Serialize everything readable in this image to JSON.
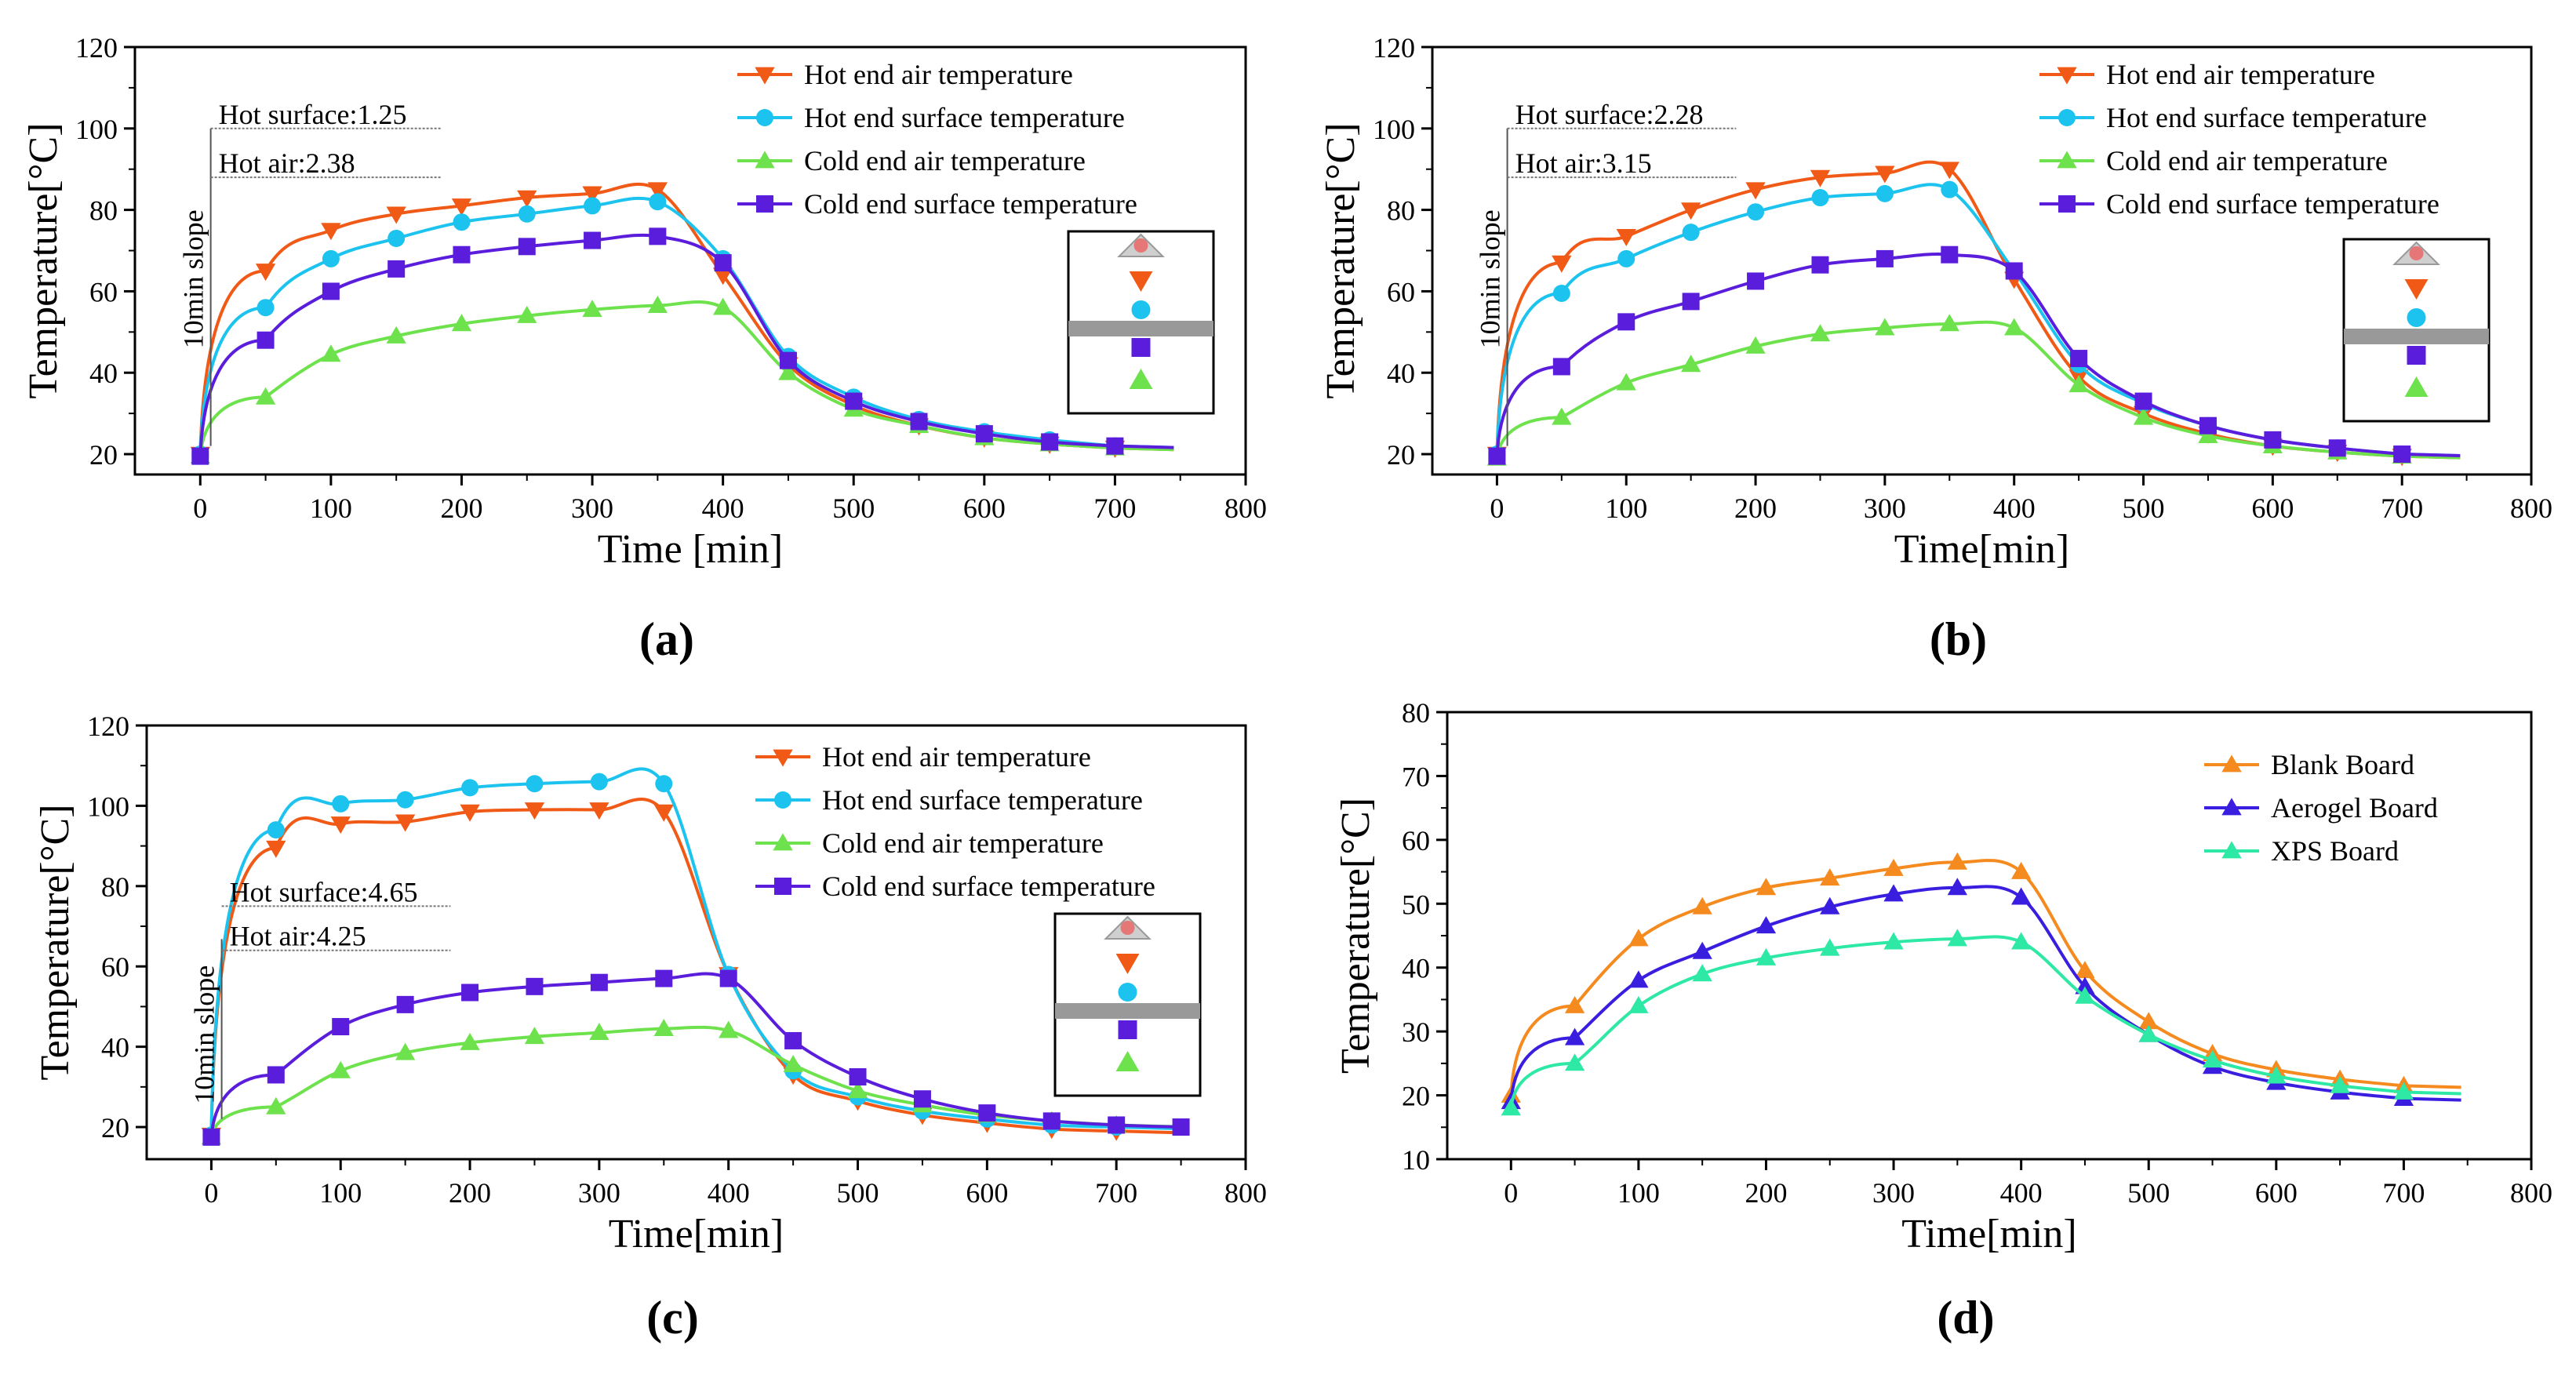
{
  "chart_data": [
    {
      "type": "line",
      "panel_label": "(a)",
      "xlabel": "Time [min]",
      "ylabel": "Temperature[°C]",
      "xlim": [
        -50,
        800
      ],
      "ylim": [
        15,
        120
      ],
      "xticks": [
        0,
        100,
        200,
        300,
        400,
        500,
        600,
        700,
        800
      ],
      "yticks": [
        20,
        40,
        60,
        80,
        100,
        120
      ],
      "legend_position": "top-right",
      "annotations": {
        "slope_label": "10min slope",
        "hot_surface": "Hot surface:1.25",
        "hot_air": "Hot air:2.38"
      },
      "series": [
        {
          "name": "Hot end air temperature",
          "color": "#F05A16",
          "marker": "triangle-down",
          "x": [
            0,
            50,
            100,
            150,
            200,
            250,
            300,
            350,
            400,
            450,
            500,
            550,
            600,
            650,
            700
          ],
          "y": [
            20,
            65,
            75,
            79,
            81,
            83,
            84,
            85,
            64,
            42,
            32,
            27,
            24,
            22.5,
            21.5
          ]
        },
        {
          "name": "Hot end surface temperature",
          "color": "#1CC3EE",
          "marker": "circle",
          "x": [
            0,
            50,
            100,
            150,
            200,
            250,
            300,
            350,
            400,
            450,
            500,
            550,
            600,
            650,
            700
          ],
          "y": [
            20,
            56,
            68,
            73,
            77,
            79,
            81,
            82,
            68,
            44,
            34,
            28.5,
            25.5,
            23.5,
            22
          ]
        },
        {
          "name": "Cold end air temperature",
          "color": "#6EE24C",
          "marker": "triangle-up",
          "x": [
            0,
            50,
            100,
            150,
            200,
            250,
            300,
            350,
            400,
            450,
            500,
            550,
            600,
            650,
            700
          ],
          "y": [
            19.5,
            34,
            44.5,
            49,
            52,
            54,
            55.5,
            56.5,
            56,
            40,
            31,
            27,
            24,
            22.5,
            21.5
          ]
        },
        {
          "name": "Cold end surface temperature",
          "color": "#5A1DDC",
          "marker": "square",
          "x": [
            0,
            50,
            100,
            150,
            200,
            250,
            300,
            350,
            400,
            450,
            500,
            550,
            600,
            650,
            700
          ],
          "y": [
            19.5,
            48,
            60,
            65.5,
            69,
            71,
            72.5,
            73.5,
            67,
            43,
            33,
            28,
            25,
            23,
            22
          ]
        }
      ]
    },
    {
      "type": "line",
      "panel_label": "(b)",
      "xlabel": "Time[min]",
      "ylabel": "Temperature[°C]",
      "xlim": [
        -50,
        800
      ],
      "ylim": [
        15,
        120
      ],
      "xticks": [
        0,
        100,
        200,
        300,
        400,
        500,
        600,
        700,
        800
      ],
      "yticks": [
        20,
        40,
        60,
        80,
        100,
        120
      ],
      "legend_position": "top-right",
      "annotations": {
        "slope_label": "10min slope",
        "hot_surface": "Hot surface:2.28",
        "hot_air": "Hot air:3.15"
      },
      "series": [
        {
          "name": "Hot end air temperature",
          "color": "#F05A16",
          "marker": "triangle-down",
          "x": [
            0,
            50,
            100,
            150,
            200,
            250,
            300,
            350,
            400,
            450,
            500,
            550,
            600,
            650,
            700
          ],
          "y": [
            20,
            67,
            73.5,
            80,
            85,
            88,
            89,
            90,
            63,
            39,
            30,
            25,
            22,
            20.5,
            19.5
          ]
        },
        {
          "name": "Hot end surface temperature",
          "color": "#1CC3EE",
          "marker": "circle",
          "x": [
            0,
            50,
            100,
            150,
            200,
            250,
            300,
            350,
            400,
            450,
            500,
            550,
            600,
            650,
            700
          ],
          "y": [
            20,
            59.5,
            68,
            74.5,
            79.5,
            83,
            84,
            85,
            65,
            42,
            32.5,
            27,
            23.5,
            21.5,
            20
          ]
        },
        {
          "name": "Cold end air temperature",
          "color": "#6EE24C",
          "marker": "triangle-up",
          "x": [
            0,
            50,
            100,
            150,
            200,
            250,
            300,
            350,
            400,
            450,
            500,
            550,
            600,
            650,
            700
          ],
          "y": [
            19,
            29,
            37.5,
            42,
            46.5,
            49.5,
            51,
            52,
            51,
            37,
            29,
            24.5,
            22,
            20.5,
            19.5
          ]
        },
        {
          "name": "Cold end surface temperature",
          "color": "#5A1DDC",
          "marker": "square",
          "x": [
            0,
            50,
            100,
            150,
            200,
            250,
            300,
            350,
            400,
            450,
            500,
            550,
            600,
            650,
            700
          ],
          "y": [
            19.5,
            41.5,
            52.5,
            57.5,
            62.5,
            66.5,
            68,
            69,
            65,
            43.5,
            33,
            27,
            23.5,
            21.5,
            20
          ]
        }
      ]
    },
    {
      "type": "line",
      "panel_label": "(c)",
      "xlabel": "Time[min]",
      "ylabel": "Temperature[°C]",
      "xlim": [
        -50,
        800
      ],
      "ylim": [
        12,
        120
      ],
      "xticks": [
        0,
        100,
        200,
        300,
        400,
        500,
        600,
        700,
        800
      ],
      "yticks": [
        20,
        40,
        60,
        80,
        100,
        120
      ],
      "legend_position": "top-right",
      "annotations": {
        "slope_label": "10min slope",
        "hot_surface": "Hot surface:4.65",
        "hot_air": "Hot air:4.25"
      },
      "series": [
        {
          "name": "Hot end air temperature",
          "color": "#F05A16",
          "marker": "triangle-down",
          "x": [
            0,
            50,
            100,
            150,
            200,
            250,
            300,
            350,
            400,
            450,
            500,
            550,
            600,
            650,
            700
          ],
          "y": [
            18,
            89.5,
            95.5,
            96,
            98.5,
            99,
            99,
            98.5,
            58,
            33,
            26.5,
            23,
            21,
            19.5,
            19
          ]
        },
        {
          "name": "Hot end surface temperature",
          "color": "#1CC3EE",
          "marker": "circle",
          "x": [
            0,
            50,
            100,
            150,
            200,
            250,
            300,
            350,
            400,
            450,
            500,
            550,
            600,
            650,
            700
          ],
          "y": [
            18,
            94,
            100.5,
            101.5,
            104.5,
            105.5,
            106,
            105.5,
            58,
            34,
            27.5,
            24,
            22,
            20.5,
            20
          ]
        },
        {
          "name": "Cold end air temperature",
          "color": "#6EE24C",
          "marker": "triangle-up",
          "x": [
            0,
            50,
            100,
            150,
            200,
            250,
            300,
            350,
            400,
            450,
            500,
            550,
            600,
            650,
            700
          ],
          "y": [
            17.5,
            25,
            34,
            38.5,
            41,
            42.5,
            43.5,
            44.5,
            44,
            35.5,
            29,
            25.5,
            23,
            21.5,
            20.5
          ]
        },
        {
          "name": "Cold end surface temperature",
          "color": "#5A1DDC",
          "marker": "square",
          "x": [
            0,
            50,
            100,
            150,
            200,
            250,
            300,
            350,
            400,
            450,
            500,
            550,
            600,
            650,
            700,
            750
          ],
          "y": [
            17.5,
            33,
            45,
            50.5,
            53.5,
            55,
            56,
            57,
            57,
            41.5,
            32.5,
            27,
            23.5,
            21.5,
            20.5,
            20
          ]
        }
      ]
    },
    {
      "type": "line",
      "panel_label": "(d)",
      "xlabel": "Time[min]",
      "ylabel": "Temperature[°C]",
      "xlim": [
        -50,
        800
      ],
      "ylim": [
        10,
        80
      ],
      "xticks": [
        0,
        100,
        200,
        300,
        400,
        500,
        600,
        700,
        800
      ],
      "yticks": [
        10,
        20,
        30,
        40,
        50,
        60,
        70,
        80
      ],
      "legend_position": "top-right",
      "series": [
        {
          "name": "Blank    Board",
          "color": "#F58A1F",
          "marker": "triangle-up",
          "x": [
            0,
            50,
            100,
            150,
            200,
            250,
            300,
            350,
            400,
            450,
            500,
            550,
            600,
            650,
            700
          ],
          "y": [
            20,
            34,
            44.5,
            49.5,
            52.5,
            54,
            55.5,
            56.5,
            55,
            39.5,
            31.5,
            26.5,
            24,
            22.5,
            21.5
          ]
        },
        {
          "name": "Aerogel Board",
          "color": "#3A1EE0",
          "marker": "triangle-up",
          "x": [
            0,
            50,
            100,
            150,
            200,
            250,
            300,
            350,
            400,
            450,
            500,
            550,
            600,
            650,
            700
          ],
          "y": [
            19,
            29,
            38,
            42.5,
            46.5,
            49.5,
            51.5,
            52.5,
            51,
            37,
            29.5,
            24.5,
            22,
            20.5,
            19.5
          ]
        },
        {
          "name": "XPS      Board",
          "color": "#2EE8A5",
          "marker": "triangle-up",
          "x": [
            0,
            50,
            100,
            150,
            200,
            250,
            300,
            350,
            400,
            450,
            500,
            550,
            600,
            650,
            700
          ],
          "y": [
            18,
            25,
            34,
            39,
            41.5,
            43,
            44,
            44.5,
            44,
            35.5,
            29.5,
            25.5,
            23,
            21.5,
            20.5
          ]
        }
      ]
    }
  ]
}
